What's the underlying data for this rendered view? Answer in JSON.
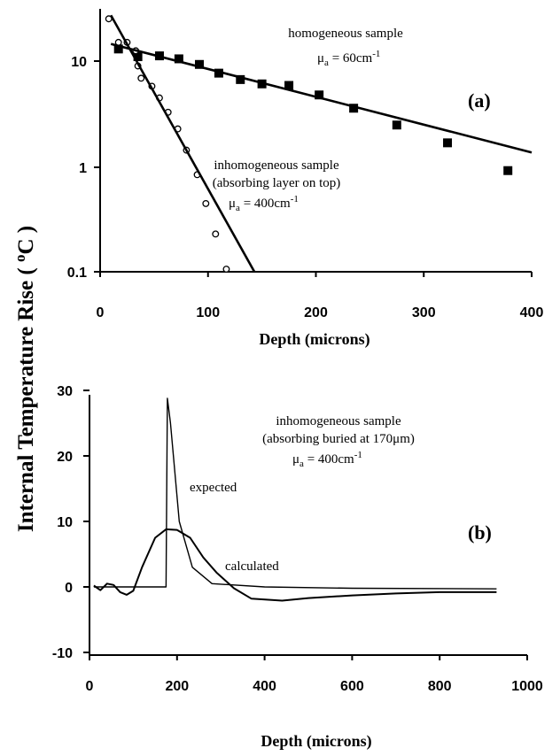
{
  "figure": {
    "ylabel": "Internal Temperature Rise ( °C )",
    "ylabel_unit_sup": "o",
    "colors": {
      "ink": "#000000",
      "background": "#ffffff"
    }
  },
  "chart_data": [
    {
      "type": "scatter",
      "panel_label": "(a)",
      "xlabel": "Depth (microns)",
      "ylabel": "Internal Temperature Rise ( °C )",
      "yscale": "log",
      "xlim": [
        0,
        400
      ],
      "ylim": [
        0.1,
        25
      ],
      "xticks": [
        "0",
        "100",
        "200",
        "300",
        "400"
      ],
      "yticks": [
        {
          "value": 10,
          "label": "10"
        },
        {
          "value": 1,
          "label": "1"
        },
        {
          "value": 0.1,
          "label": "0.1"
        }
      ],
      "grid": false,
      "annotations": {
        "homogeneous": [
          "homogeneous sample",
          "μ",
          "a",
          " = 60cm",
          "-1"
        ],
        "inhomogeneous": [
          "inhomogeneous sample",
          "(absorbing layer on top)",
          "μ",
          "a",
          " = 400cm",
          "-1"
        ]
      },
      "series": [
        {
          "marker": "filled-square",
          "points": [
            [
              17,
              13
            ],
            [
              35,
              11
            ],
            [
              55,
              11.2
            ],
            [
              73,
              10.5
            ],
            [
              92,
              9.3
            ],
            [
              110,
              7.7
            ],
            [
              130,
              6.7
            ],
            [
              150,
              6.1
            ],
            [
              175,
              5.9
            ],
            [
              203,
              4.8
            ],
            [
              235,
              3.6
            ],
            [
              275,
              2.5
            ],
            [
              322,
              1.7
            ],
            [
              378,
              0.93
            ]
          ]
        },
        {
          "marker": "open-circle",
          "points": [
            [
              8,
              25
            ],
            [
              17,
              15
            ],
            [
              25,
              15
            ],
            [
              33,
              12.5
            ],
            [
              35,
              9
            ],
            [
              38,
              6.9
            ],
            [
              48,
              5.8
            ],
            [
              55,
              4.5
            ],
            [
              63,
              3.3
            ],
            [
              72,
              2.3
            ],
            [
              80,
              1.45
            ],
            [
              90,
              0.85
            ],
            [
              98,
              0.45
            ],
            [
              107,
              0.23
            ],
            [
              117,
              0.106
            ]
          ]
        },
        {
          "marker": "line",
          "points": [
            [
              10,
              14.5
            ],
            [
              400,
              1.38
            ]
          ]
        },
        {
          "marker": "line",
          "points": [
            [
              10,
              27
            ],
            [
              143,
              0.1
            ]
          ]
        }
      ]
    },
    {
      "type": "line",
      "panel_label": "(b)",
      "xlabel": "Depth (microns)",
      "ylabel": "Internal Temperature Rise ( °C )",
      "xlim": [
        0,
        1000
      ],
      "ylim": [
        -10,
        30
      ],
      "xticks": [
        "0",
        "200",
        "400",
        "600",
        "800",
        "1000"
      ],
      "yticks": [
        {
          "value": 30,
          "label": "30"
        },
        {
          "value": 20,
          "label": "20"
        },
        {
          "value": 10,
          "label": "10"
        },
        {
          "value": 0,
          "label": "0"
        },
        {
          "value": -10,
          "label": "-10"
        }
      ],
      "grid": false,
      "annotation": [
        "inhomogeneous sample",
        "(absorbing buried at 170μm)",
        "μ",
        "a",
        " = 400cm",
        "-1"
      ],
      "series": [
        {
          "name": "expected",
          "points": [
            [
              10,
              0
            ],
            [
              175,
              0
            ],
            [
              175,
              0.2
            ],
            [
              178,
              28.8
            ],
            [
              185,
              25
            ],
            [
              205,
              10
            ],
            [
              235,
              3
            ],
            [
              280,
              0.5
            ],
            [
              400,
              0
            ],
            [
              600,
              -0.2
            ],
            [
              930,
              -0.3
            ]
          ]
        },
        {
          "name": "calculated",
          "points": [
            [
              10,
              0.2
            ],
            [
              25,
              -0.5
            ],
            [
              40,
              0.5
            ],
            [
              55,
              0.3
            ],
            [
              70,
              -0.8
            ],
            [
              85,
              -1.2
            ],
            [
              100,
              -0.6
            ],
            [
              120,
              3
            ],
            [
              150,
              7.5
            ],
            [
              175,
              8.8
            ],
            [
              200,
              8.7
            ],
            [
              230,
              7.5
            ],
            [
              260,
              4.5
            ],
            [
              290,
              2.2
            ],
            [
              330,
              -0.2
            ],
            [
              370,
              -1.8
            ],
            [
              440,
              -2.1
            ],
            [
              500,
              -1.7
            ],
            [
              600,
              -1.3
            ],
            [
              700,
              -1
            ],
            [
              800,
              -0.8
            ],
            [
              930,
              -0.8
            ]
          ]
        }
      ]
    }
  ]
}
